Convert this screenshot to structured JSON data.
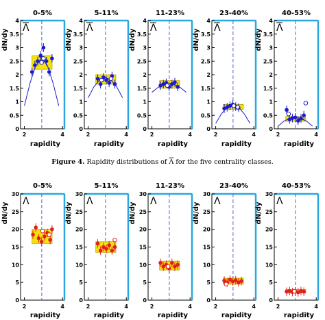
{
  "caption": {
    "label": "Figure 4.",
    "text_before": "Rapidity distributions of",
    "particle": "Λ",
    "text_after": "for the five centrality classes."
  },
  "colors": {
    "frame": "#29a8e0",
    "band": "#f4e20a",
    "band_edge": "#b8a400",
    "midline": "#5060d0",
    "top_markers": "#1a1ad0",
    "bottom_markers": "#e02020",
    "fit": "#1a1ad0"
  },
  "chart_data": [
    {
      "type": "scatter",
      "row": "top",
      "particle_label": "Λ",
      "overline": true,
      "ylabel": "dN/dy",
      "xlabel": "rapidity",
      "xlim": [
        1.8,
        4.1
      ],
      "xticks": [
        2,
        4
      ],
      "ylim": [
        0,
        4
      ],
      "yticks": [
        0,
        0.5,
        1,
        1.5,
        2,
        2.5,
        3,
        3.5,
        4
      ],
      "ytick_labels": [
        "0",
        "0.5",
        "1",
        "1.5",
        "2",
        "2.5",
        "3",
        "3.5",
        "4"
      ],
      "midrapidity": 2.91,
      "panels": [
        {
          "title": "0-5%",
          "band": [
            2.4,
            3.45,
            2.2,
            2.7
          ],
          "points": [
            [
              2.4,
              2.1
            ],
            [
              2.55,
              2.35
            ],
            [
              2.7,
              2.5
            ],
            [
              2.85,
              2.7
            ],
            [
              3.0,
              3.0
            ],
            [
              3.15,
              2.5
            ],
            [
              3.3,
              2.1
            ],
            [
              3.45,
              2.6
            ]
          ],
          "open": [
            [
              2.9,
              2.45
            ],
            [
              3.0,
              2.6
            ]
          ],
          "fit": [
            [
              2.0,
              0.85
            ],
            [
              2.3,
              1.7
            ],
            [
              2.6,
              2.35
            ],
            [
              2.91,
              2.6
            ],
            [
              3.2,
              2.35
            ],
            [
              3.5,
              1.7
            ],
            [
              3.8,
              0.85
            ]
          ]
        },
        {
          "title": "5-11%",
          "band": [
            2.4,
            3.45,
            1.65,
            2.0
          ],
          "points": [
            [
              2.5,
              1.85
            ],
            [
              2.65,
              1.65
            ],
            [
              2.8,
              1.9
            ],
            [
              2.95,
              1.8
            ],
            [
              3.1,
              1.7
            ],
            [
              3.25,
              1.95
            ],
            [
              3.4,
              1.65
            ]
          ],
          "open": [
            [
              2.7,
              1.8
            ],
            [
              3.2,
              1.85
            ]
          ],
          "fit": [
            [
              2.0,
              1.15
            ],
            [
              2.3,
              1.55
            ],
            [
              2.6,
              1.8
            ],
            [
              2.91,
              1.9
            ],
            [
              3.2,
              1.8
            ],
            [
              3.5,
              1.55
            ],
            [
              3.8,
              1.15
            ]
          ]
        },
        {
          "title": "11-23%",
          "band": [
            2.4,
            3.45,
            1.5,
            1.78
          ],
          "points": [
            [
              2.45,
              1.6
            ],
            [
              2.6,
              1.65
            ],
            [
              2.75,
              1.7
            ],
            [
              2.9,
              1.55
            ],
            [
              3.05,
              1.65
            ],
            [
              3.2,
              1.72
            ],
            [
              3.35,
              1.55
            ]
          ],
          "open": [
            [
              2.8,
              1.6
            ]
          ],
          "fit": [
            [
              2.0,
              1.35
            ],
            [
              2.3,
              1.52
            ],
            [
              2.6,
              1.63
            ],
            [
              2.91,
              1.67
            ],
            [
              3.2,
              1.63
            ],
            [
              3.5,
              1.52
            ],
            [
              3.8,
              1.35
            ]
          ]
        },
        {
          "title": "23-40%",
          "band": [
            2.4,
            3.45,
            0.72,
            0.9
          ],
          "points": [
            [
              2.45,
              0.75
            ],
            [
              2.6,
              0.8
            ],
            [
              2.75,
              0.85
            ],
            [
              2.9,
              0.9
            ],
            [
              3.05,
              0.82
            ],
            [
              3.2,
              0.78
            ]
          ],
          "open": [
            [
              2.95,
              0.85
            ],
            [
              3.15,
              0.8
            ]
          ],
          "fit": [
            [
              2.0,
              0.2
            ],
            [
              2.3,
              0.55
            ],
            [
              2.6,
              0.8
            ],
            [
              2.91,
              0.88
            ],
            [
              3.2,
              0.8
            ],
            [
              3.5,
              0.55
            ],
            [
              3.8,
              0.2
            ]
          ]
        },
        {
          "title": "40-53%",
          "band": [
            2.4,
            3.45,
            0.28,
            0.45
          ],
          "points": [
            [
              2.45,
              0.7
            ],
            [
              2.6,
              0.35
            ],
            [
              2.75,
              0.4
            ],
            [
              2.9,
              0.42
            ],
            [
              3.05,
              0.3
            ],
            [
              3.2,
              0.38
            ],
            [
              3.35,
              0.5
            ]
          ],
          "open": [
            [
              3.45,
              0.95
            ],
            [
              2.55,
              0.55
            ]
          ],
          "fit": [
            [
              2.0,
              0.1
            ],
            [
              2.3,
              0.28
            ],
            [
              2.6,
              0.38
            ],
            [
              2.91,
              0.42
            ],
            [
              3.2,
              0.38
            ],
            [
              3.5,
              0.28
            ],
            [
              3.8,
              0.1
            ]
          ]
        }
      ]
    },
    {
      "type": "scatter",
      "row": "bottom",
      "particle_label": "Λ",
      "overline": false,
      "ylabel": "dN/dy",
      "xlabel": "rapidity",
      "xlim": [
        1.8,
        4.1
      ],
      "xticks": [
        2,
        4
      ],
      "ylim": [
        0,
        30
      ],
      "yticks": [
        0,
        5,
        10,
        15,
        20,
        25,
        30
      ],
      "ytick_labels": [
        "0",
        "5",
        "10",
        "15",
        "20",
        "25",
        "30"
      ],
      "midrapidity": 2.91,
      "panels": [
        {
          "title": "0-5%",
          "band": [
            2.4,
            3.45,
            16.0,
            20.0
          ],
          "points": [
            [
              2.45,
              18.5
            ],
            [
              2.6,
              20.5
            ],
            [
              2.75,
              17.5
            ],
            [
              2.9,
              16.5
            ],
            [
              3.05,
              18.0
            ],
            [
              3.2,
              19.0
            ],
            [
              3.35,
              17.0
            ],
            [
              3.45,
              20.0
            ]
          ],
          "open": [
            [
              2.95,
              19.5
            ],
            [
              3.3,
              18.5
            ]
          ]
        },
        {
          "title": "5-11%",
          "band": [
            2.4,
            3.45,
            13.5,
            16.5
          ],
          "points": [
            [
              2.5,
              16.0
            ],
            [
              2.65,
              14.0
            ],
            [
              2.8,
              15.0
            ],
            [
              2.95,
              14.5
            ],
            [
              3.1,
              15.5
            ],
            [
              3.25,
              14.0
            ],
            [
              3.4,
              15.0
            ]
          ],
          "open": [
            [
              3.4,
              17.0
            ]
          ]
        },
        {
          "title": "11-23%",
          "band": [
            2.4,
            3.45,
            8.5,
            11.0
          ],
          "points": [
            [
              2.45,
              10.5
            ],
            [
              2.6,
              9.5
            ],
            [
              2.75,
              10.0
            ],
            [
              2.9,
              9.0
            ],
            [
              3.05,
              10.5
            ],
            [
              3.2,
              9.5
            ],
            [
              3.35,
              10.0
            ]
          ],
          "open": [
            [
              2.85,
              9.5
            ]
          ]
        },
        {
          "title": "23-40%",
          "band": [
            2.4,
            3.45,
            4.5,
            6.2
          ],
          "points": [
            [
              2.45,
              5.5
            ],
            [
              2.6,
              5.0
            ],
            [
              2.75,
              5.8
            ],
            [
              2.9,
              5.3
            ],
            [
              3.05,
              5.6
            ],
            [
              3.2,
              5.0
            ],
            [
              3.35,
              5.4
            ]
          ],
          "open": [
            [
              2.55,
              4.5
            ]
          ]
        },
        {
          "title": "40-53%",
          "band": [
            2.4,
            3.45,
            2.0,
            3.0
          ],
          "points": [
            [
              2.45,
              2.4
            ],
            [
              2.6,
              2.6
            ],
            [
              2.75,
              2.3
            ],
            [
              2.9,
              2.5
            ],
            [
              3.05,
              2.2
            ],
            [
              3.2,
              2.6
            ],
            [
              3.35,
              2.4
            ]
          ],
          "open": [
            [
              2.85,
              2.5
            ]
          ]
        }
      ]
    }
  ]
}
